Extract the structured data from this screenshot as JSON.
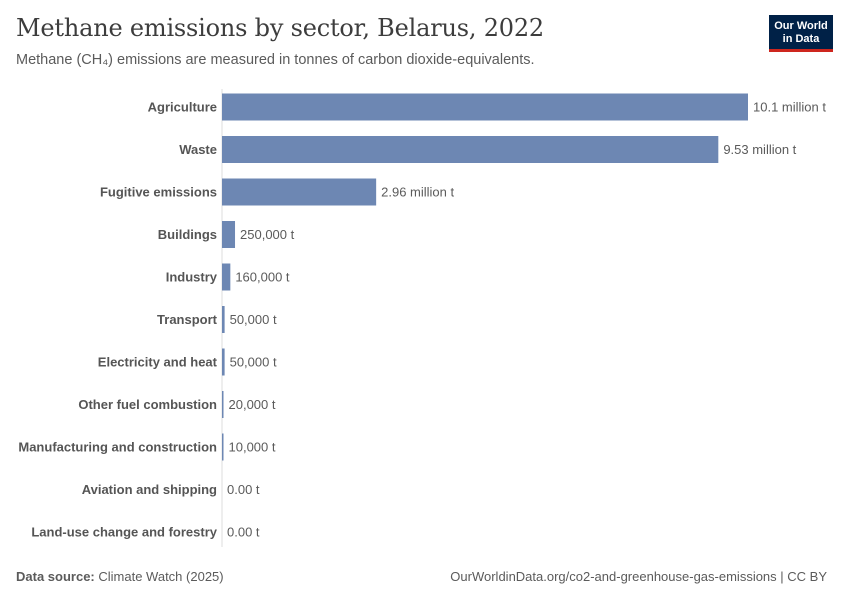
{
  "header": {
    "title": "Methane emissions by sector, Belarus, 2022",
    "subtitle": "Methane (CH₄) emissions are measured in tonnes of carbon dioxide-equivalents.",
    "logo_line1": "Our World",
    "logo_line2": "in Data"
  },
  "footer": {
    "source_label": "Data source:",
    "source_value": "Climate Watch (2025)",
    "url": "OurWorldinData.org/co2-and-greenhouse-gas-emissions | CC BY"
  },
  "chart_data": {
    "type": "bar",
    "orientation": "horizontal",
    "title": "Methane emissions by sector, Belarus, 2022",
    "subtitle": "Methane (CH₄) emissions are measured in tonnes of carbon dioxide-equivalents.",
    "bar_color": "#6d87b3",
    "categories": [
      "Agriculture",
      "Waste",
      "Fugitive emissions",
      "Buildings",
      "Industry",
      "Transport",
      "Electricity and heat",
      "Other fuel combustion",
      "Manufacturing and construction",
      "Aviation and shipping",
      "Land-use change and forestry"
    ],
    "values": [
      10100000,
      9530000,
      2960000,
      250000,
      160000,
      50000,
      50000,
      20000,
      10000,
      0,
      0
    ],
    "value_labels": [
      "10.1 million t",
      "9.53 million t",
      "2.96 million t",
      "250,000 t",
      "160,000 t",
      "50,000 t",
      "50,000 t",
      "20,000 t",
      "10,000 t",
      "0.00 t",
      "0.00 t"
    ],
    "xlim": [
      0,
      10100000
    ]
  }
}
